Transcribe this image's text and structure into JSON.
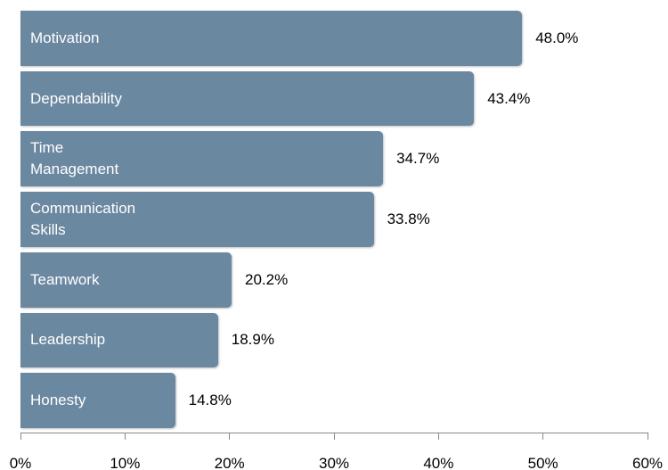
{
  "chart_data": {
    "type": "barh",
    "categories": [
      "Motivation",
      "Dependability",
      "Time\nManagement",
      "Communication\nSkills",
      "Teamwork",
      "Leadership",
      "Honesty"
    ],
    "values": [
      48.0,
      43.4,
      34.7,
      33.8,
      20.2,
      18.9,
      14.8
    ],
    "value_labels": [
      "48.0%",
      "43.4%",
      "34.7%",
      "33.8%",
      "20.2%",
      "18.9%",
      "14.8%"
    ],
    "color": "#6b88a1",
    "xlim": [
      0,
      60
    ],
    "xticks": [
      {
        "value": 0,
        "label": "0%"
      },
      {
        "value": 10,
        "label": "10%"
      },
      {
        "value": 20,
        "label": "20%"
      },
      {
        "value": 30,
        "label": "30%"
      },
      {
        "value": 40,
        "label": "40%"
      },
      {
        "value": 50,
        "label": "50%"
      },
      {
        "value": 60,
        "label": "60%"
      }
    ]
  }
}
